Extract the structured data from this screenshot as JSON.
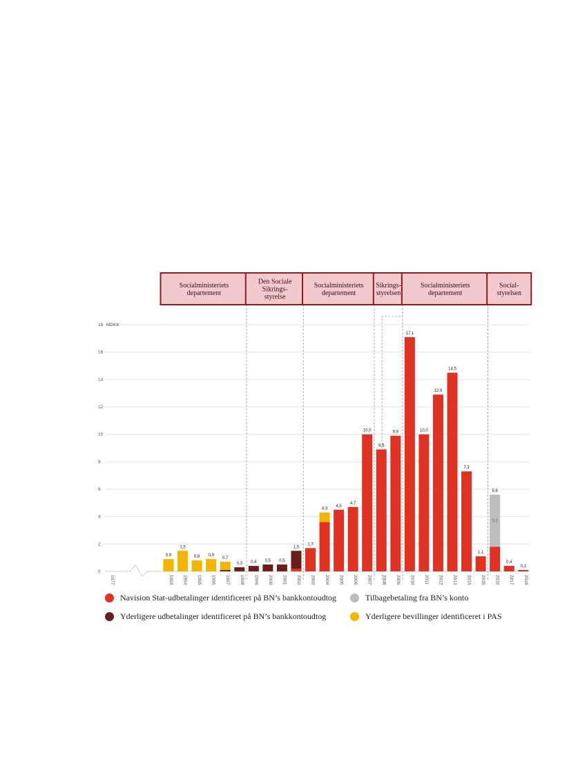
{
  "chart_data": {
    "type": "bar",
    "stacked": true,
    "ylabel": "MDKK",
    "ylim": [
      0,
      18
    ],
    "yticks": [
      0,
      2,
      4,
      6,
      8,
      10,
      12,
      14,
      16,
      18
    ],
    "grid": true,
    "axis_break": "between 1977 and 1993",
    "categories": [
      "1977",
      "1993",
      "1994",
      "1995",
      "1996",
      "1997",
      "1998",
      "1999",
      "2000",
      "2001",
      "2002",
      "2003",
      "2004",
      "2005",
      "2006",
      "2007",
      "2008",
      "2009",
      "2010",
      "2011",
      "2012",
      "2013",
      "2014",
      "2015",
      "2016",
      "2017",
      "2018"
    ],
    "series": [
      {
        "name": "Navision Stat-udbetalinger identificeret på BN's bankkontoudtog",
        "color": "#e03223",
        "values": [
          0,
          0,
          0,
          0,
          0,
          0,
          0,
          0,
          0,
          0,
          0.2,
          1.7,
          3.6,
          4.5,
          4.7,
          10.0,
          8.9,
          9.9,
          17.1,
          10.0,
          12.9,
          14.5,
          7.3,
          1.1,
          1.8,
          0.4,
          0.1
        ]
      },
      {
        "name": "Yderligere udbetalinger identificeret på BN's bankkontoudtog",
        "color": "#6b1d1a",
        "values": [
          0,
          0,
          0,
          0,
          0,
          0.1,
          0.3,
          0.4,
          0.5,
          0.5,
          1.3,
          0,
          0,
          0,
          0,
          0,
          0,
          0,
          0,
          0,
          0,
          0,
          0,
          0,
          0,
          0,
          0
        ]
      },
      {
        "name": "Yderligere bevillinger identificeret i PAS",
        "color": "#f5b400",
        "values": [
          0,
          0.9,
          1.5,
          0.8,
          0.9,
          0.6,
          0,
          0,
          0,
          0,
          0,
          0,
          0.7,
          0,
          0,
          0,
          0,
          0,
          0,
          0,
          0,
          0,
          0,
          0,
          0,
          0,
          0
        ]
      },
      {
        "name": "Tilbagebetaling fra BN's konto",
        "color": "#bdbdbd",
        "values": [
          0,
          0,
          0,
          0,
          0,
          0,
          0,
          0,
          0,
          0,
          0,
          0,
          0,
          0,
          0,
          0,
          0,
          0,
          0,
          0,
          0,
          0,
          0,
          0,
          3.8,
          0,
          0
        ]
      }
    ],
    "total_labels": [
      "",
      "0,9",
      "1,5",
      "0,8",
      "0,9",
      "0,7",
      "0,3",
      "0,4",
      "0,5",
      "0,5",
      "1,5",
      "1,7",
      "4,3",
      "4,5",
      "4,7",
      "10,0",
      "8,9",
      "9,9",
      "17,1",
      "10,0",
      "12,9",
      "14,5",
      "7,3",
      "1,1",
      "5,6",
      "0,4",
      "0,1"
    ],
    "inner_labels": [
      {
        "category": "2016",
        "series": "Tilbagebetaling fra BN's konto",
        "text": "3,8"
      }
    ],
    "periods": [
      {
        "lines": [
          "Socialministeriets",
          "departement"
        ],
        "from": "1993",
        "to": "1998"
      },
      {
        "lines": [
          "Den Sociale",
          "Sikrings-",
          "styrelse"
        ],
        "from": "1999",
        "to": "2002"
      },
      {
        "lines": [
          "Socialministeriets",
          "departement"
        ],
        "from": "2003",
        "to": "2007"
      },
      {
        "lines": [
          "Sikrings-",
          "styrelsen"
        ],
        "from": "2008",
        "to": "2009"
      },
      {
        "lines": [
          "Socialministeriets",
          "departement"
        ],
        "from": "2010",
        "to": "2015"
      },
      {
        "lines": [
          "Social-",
          "styrelsen"
        ],
        "from": "2016",
        "to": "2018"
      }
    ]
  },
  "legend": {
    "items": [
      {
        "label": "Navision Stat-udbetalinger identificeret på BN’s bankkontoudtog",
        "color": "#e03223"
      },
      {
        "label": "Tilbagebetaling fra BN’s konto",
        "color": "#bdbdbd"
      },
      {
        "label": "Yderligere udbetalinger identificeret på BN’s bankkontoudtog",
        "color": "#6b1d1a"
      },
      {
        "label": "Yderligere bevillinger identificeret i PAS",
        "color": "#f5b400"
      }
    ]
  }
}
